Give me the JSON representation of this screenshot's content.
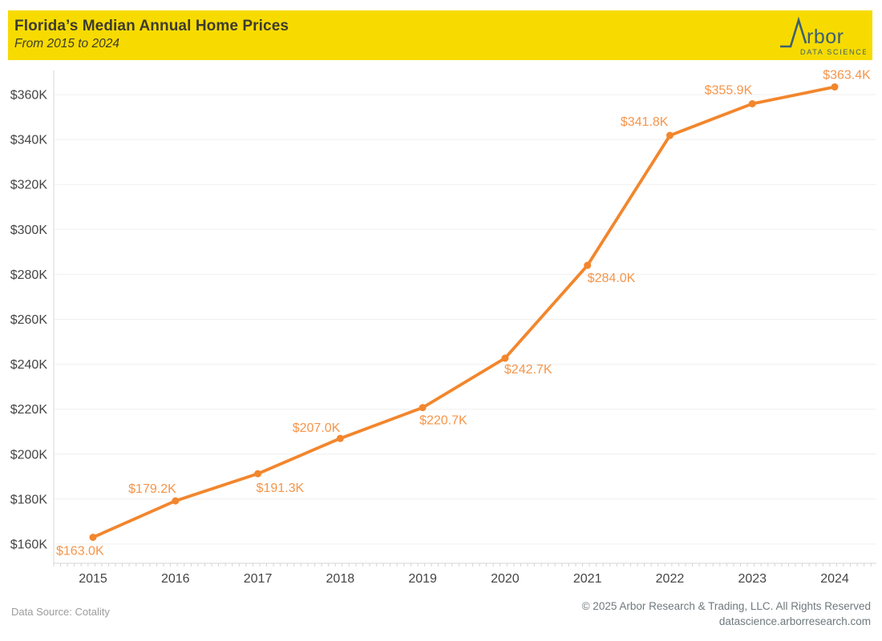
{
  "header": {
    "title": "Florida’s Median Annual Home Prices",
    "subtitle": "From 2015 to 2024"
  },
  "logo": {
    "name": "Arbor",
    "wordmark_suffix": "rbor",
    "tagline": "DATA SCIENCE"
  },
  "chart_data": {
    "type": "line",
    "title": "Florida’s Median Annual Home Prices",
    "subtitle": "From 2015 to 2024",
    "categories": [
      "2015",
      "2016",
      "2017",
      "2018",
      "2019",
      "2020",
      "2021",
      "2022",
      "2023",
      "2024"
    ],
    "values": [
      163.0,
      179.2,
      191.3,
      207.0,
      220.7,
      242.7,
      284.0,
      341.8,
      355.9,
      363.4
    ],
    "point_labels": [
      "$163.0K",
      "$179.2K",
      "$191.3K",
      "$207.0K",
      "$220.7K",
      "$242.7K",
      "$284.0K",
      "$341.8K",
      "$355.9K",
      "$363.4K"
    ],
    "unit": "USD thousands",
    "xlabel": "",
    "ylabel": "",
    "y_ticks": [
      160,
      180,
      200,
      220,
      240,
      260,
      280,
      300,
      320,
      340,
      360
    ],
    "y_tick_labels": [
      "$160K",
      "$180K",
      "$200K",
      "$220K",
      "$240K",
      "$260K",
      "$280K",
      "$300K",
      "$320K",
      "$340K",
      "$360K"
    ],
    "ylim": [
      151,
      371
    ],
    "grid": "horizontal",
    "legend": "none"
  },
  "footer": {
    "source": "Data Source: Cotality",
    "copyright": "© 2025 Arbor Research & Trading, LLC. All Rights Reserved",
    "website": "datascience.arborresearch.com"
  },
  "colors": {
    "header_bg": "#F7DB00",
    "header_text": "#3E3C2E",
    "logo": "#3D6073",
    "line": "#F2862D",
    "point_label": "#F5954A",
    "axis_text": "#454545",
    "grid": "#EFEFEF",
    "axis_line": "#D4D4D4",
    "footer_left": "#9C9C9C",
    "footer_right": "#6F797D"
  }
}
